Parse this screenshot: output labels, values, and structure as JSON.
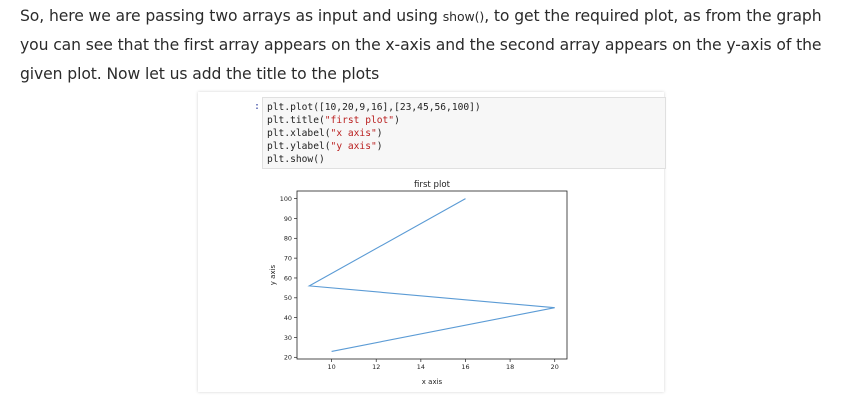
{
  "paragraph": {
    "text_before": "So, here we are passing two arrays as input and using ",
    "inline_code": "show()",
    "text_after": ", to get the required plot, as from the graph you can see that the first array appears on the x-axis and the second array appears on the y-axis of the given plot. Now let us add the title to the plots"
  },
  "notebook": {
    "prompt": ":",
    "code_lines": [
      {
        "pre": "plt.plot([10,20,9,16],[23,45,56,100])",
        "str": "",
        "post": ""
      },
      {
        "pre": "plt.title(",
        "str": "\"first plot\"",
        "post": ")"
      },
      {
        "pre": "plt.xlabel(",
        "str": "\"x axis\"",
        "post": ")"
      },
      {
        "pre": "plt.ylabel(",
        "str": "\"y axis\"",
        "post": ")"
      },
      {
        "pre": "plt.show()",
        "str": "",
        "post": ""
      }
    ]
  },
  "colors": {
    "line": "#5b9bd5",
    "code_string": "#ba2121",
    "prompt": "#303f9f"
  },
  "chart_data": {
    "type": "line",
    "title": "first plot",
    "xlabel": "x axis",
    "ylabel": "y axis",
    "x": [
      10,
      20,
      9,
      16
    ],
    "y": [
      23,
      45,
      56,
      100
    ],
    "xlim": [
      8.45,
      20.55
    ],
    "ylim": [
      19.15,
      103.85
    ],
    "xticks": [
      10,
      12,
      14,
      16,
      18,
      20
    ],
    "yticks": [
      20,
      30,
      40,
      50,
      60,
      70,
      80,
      90,
      100
    ],
    "grid": false,
    "legend": false
  }
}
